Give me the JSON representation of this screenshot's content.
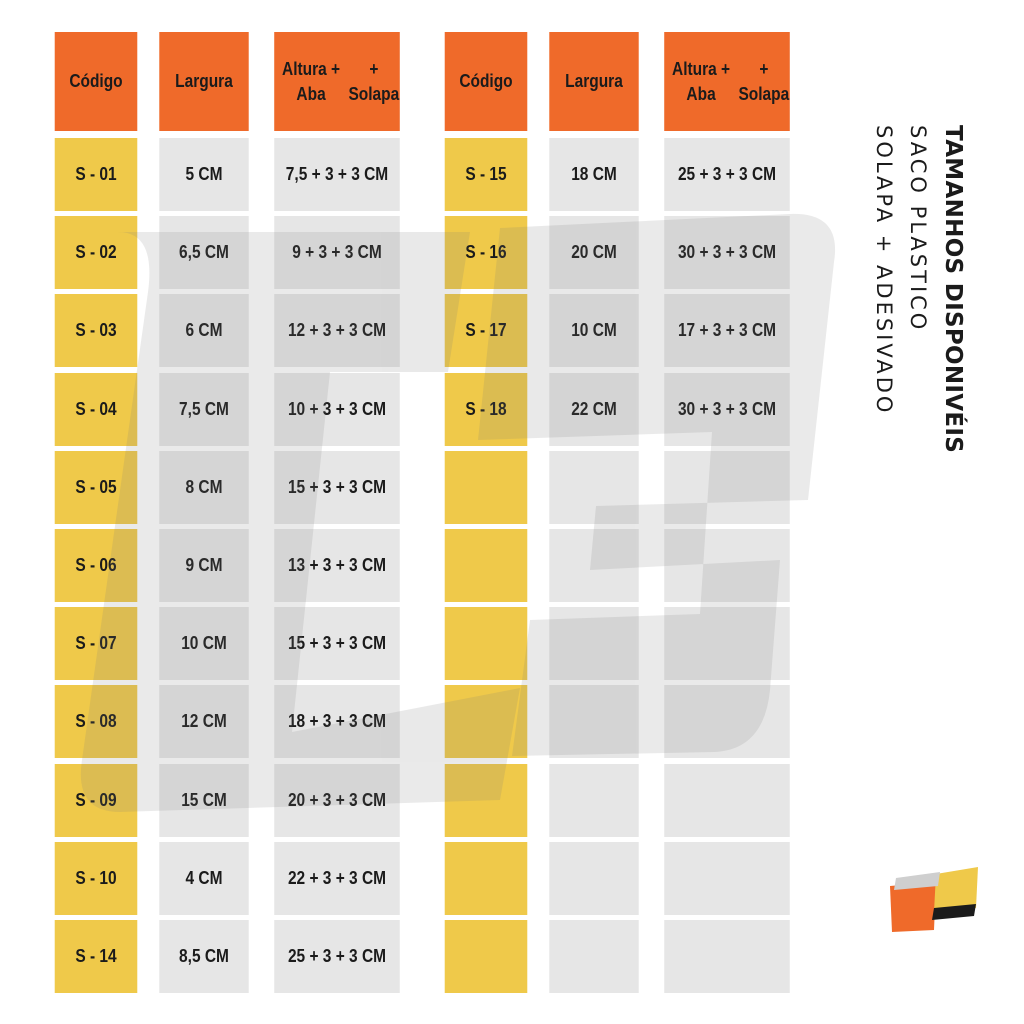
{
  "colors": {
    "header": "#ef6a2a",
    "code": "#efc94a",
    "value": "#e6e6e6"
  },
  "table": {
    "headers": [
      "Código",
      "Largura",
      [
        "Altura + Aba",
        "+ Solapa"
      ]
    ],
    "left": [
      [
        "S - 01",
        "5 CM",
        "7,5 + 3 + 3 CM"
      ],
      [
        "S - 02",
        "6,5 CM",
        "9 + 3 + 3 CM"
      ],
      [
        "S - 03",
        "6 CM",
        "12 + 3 + 3 CM"
      ],
      [
        "S - 04",
        "7,5 CM",
        "10 + 3 + 3 CM"
      ],
      [
        "S - 05",
        "8 CM",
        "15 + 3 + 3 CM"
      ],
      [
        "S - 06",
        "9 CM",
        "13 + 3 + 3 CM"
      ],
      [
        "S - 07",
        "10 CM",
        "15 + 3 + 3 CM"
      ],
      [
        "S - 08",
        "12 CM",
        "18 + 3 + 3 CM"
      ],
      [
        "S - 09",
        "15 CM",
        "20 + 3 + 3 CM"
      ],
      [
        "S - 10",
        "4 CM",
        "22 + 3 + 3 CM"
      ],
      [
        "S - 14",
        "8,5 CM",
        "25 + 3 + 3 CM"
      ]
    ],
    "right": [
      [
        "S - 15",
        "18 CM",
        "25 + 3 + 3 CM"
      ],
      [
        "S - 16",
        "20 CM",
        "30 + 3 + 3 CM"
      ],
      [
        "S - 17",
        "10 CM",
        "17 + 3 + 3 CM"
      ],
      [
        "S - 18",
        "22 CM",
        "30 + 3 + 3 CM"
      ],
      [
        "",
        "",
        ""
      ],
      [
        "",
        "",
        ""
      ],
      [
        "",
        "",
        ""
      ],
      [
        "",
        "",
        ""
      ],
      [
        "",
        "",
        ""
      ],
      [
        "",
        "",
        ""
      ],
      [
        "",
        "",
        ""
      ]
    ]
  },
  "side": {
    "title": "TAMANHOS DISPONIVÉIS",
    "line1": "SACO PLASTICO",
    "line2": "SOLAPA + ADESIVADO"
  }
}
